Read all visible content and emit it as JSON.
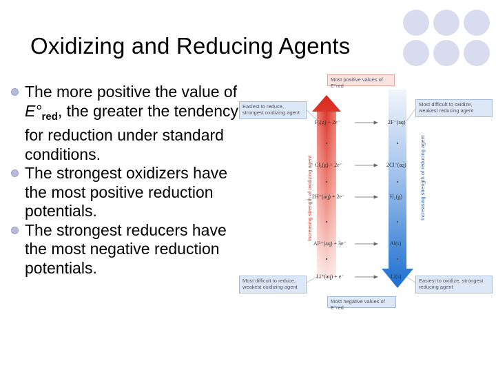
{
  "slide": {
    "title": "Oxidizing and Reducing Agents",
    "bullets": [
      {
        "pre": "The more positive the value of ",
        "symbol": "E°",
        "sub": "red",
        "post": ", the greater the tendency for reduction under standard conditions."
      },
      {
        "text": "The strongest oxidizers have the most positive reduction potentials."
      },
      {
        "text": "The strongest reducers have the most negative reduction potentials."
      }
    ]
  },
  "figure": {
    "top_label": "Most positive values of E°red",
    "bottom_label": "Most negative values of E°red",
    "left_top_box": "Easiest to reduce, strongest oxidizing agent",
    "left_bottom_box": "Most difficult to reduce, weakest oxidizing agent",
    "right_top_box": "Most difficult to oxidize, weakest reducing agent",
    "right_bottom_box": "Easiest to oxidize, strongest reducing agent",
    "left_axis_label": "Increasing strength of oxidizing agent",
    "right_axis_label": "Increasing strength of reducing agent",
    "left_species": [
      "F₂(g) + 2e⁻",
      "Cl₂(g) + 2e⁻",
      "2H⁺(aq) + 2e⁻",
      "Al³⁺(aq) + 3e⁻",
      "Li⁺(aq) + e⁻"
    ],
    "right_species": [
      "2F⁻(aq)",
      "2Cl⁻(aq)",
      "H₂(g)",
      "Al(s)",
      "Li(s)"
    ]
  },
  "colors": {
    "bullet": "#b8bbd8",
    "decor_circles": "#d9dcef",
    "red_arrow_top": "#d9271b",
    "blue_arrow_bottom": "#1b6fcf"
  }
}
